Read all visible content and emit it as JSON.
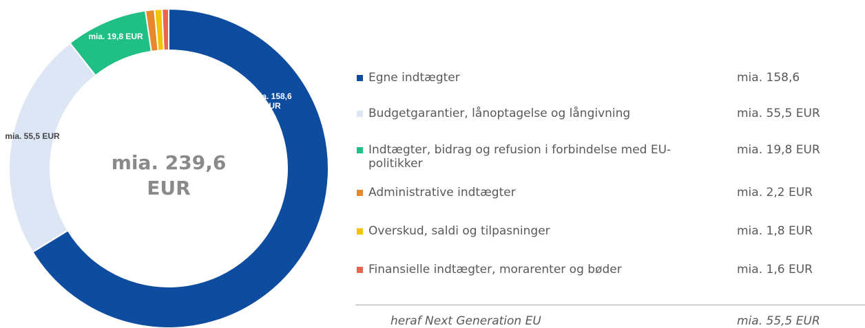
{
  "chart_data": {
    "type": "donut",
    "total_label": "mia. 239,6 EUR",
    "categories": [
      "Egne indtægter",
      "Budgetgarantier, lånoptagelse og långivning",
      "Indtægter, bidrag og refusion i forbindelse med EU-politikker",
      "Administrative indtægter",
      "Overskud, saldi og tilpasninger",
      "Finansielle indtægter, morarenter og bøder"
    ],
    "values": [
      158.6,
      55.5,
      19.8,
      2.2,
      1.8,
      1.6
    ],
    "colors": [
      "#0e4c9f",
      "#dde6f5",
      "#1fbf86",
      "#e8892f",
      "#f5c400",
      "#e8664f"
    ],
    "value_labels": [
      "mia. 158,6 EUR",
      "mia. 55,5 EUR",
      "mia. 19,8 EUR",
      null,
      null,
      null
    ],
    "legend_value_labels": [
      "mia. 158,6",
      "mia. 55,5 EUR",
      "mia. 19,8 EUR",
      "mia. 2,2 EUR",
      "mia. 1,8 EUR",
      "mia. 1,6 EUR"
    ],
    "note": {
      "label": "heraf Next Generation EU",
      "value_label": "mia. 55,5 EUR"
    }
  }
}
